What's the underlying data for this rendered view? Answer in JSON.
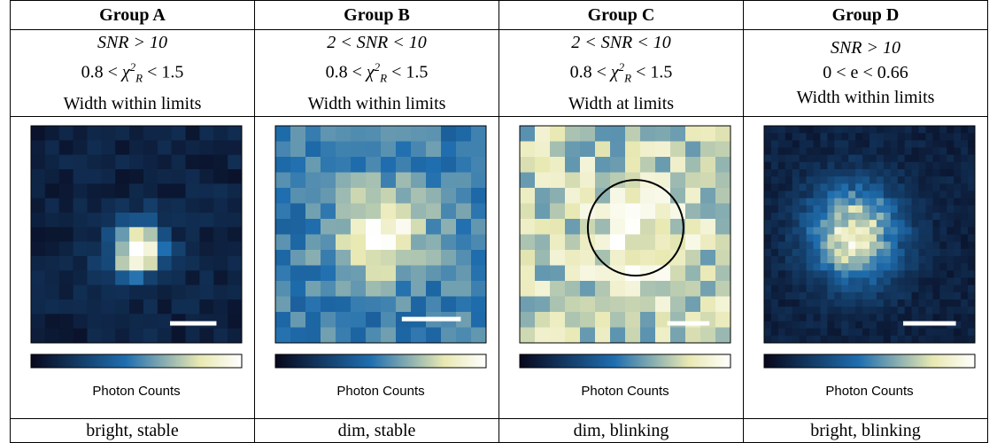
{
  "table": {
    "columns": [
      {
        "header": "Group A",
        "criteria": [
          "SNR > 10",
          {
            "before": "0.8 <",
            "symbol": "χ",
            "sup": "2",
            "sub": "R",
            "after": "< 1.5"
          },
          "Width within limits"
        ],
        "colorbar_label": "Photon Counts",
        "footer": "bright, stable"
      },
      {
        "header": "Group B",
        "criteria": [
          "2 < SNR < 10",
          {
            "before": "0.8 <",
            "symbol": "χ",
            "sup": "2",
            "sub": "R",
            "after": "< 1.5"
          },
          "Width within limits"
        ],
        "colorbar_label": "Photon Counts",
        "footer": "dim, stable"
      },
      {
        "header": "Group C",
        "criteria": [
          "2 < SNR < 10",
          {
            "before": "0.8 <",
            "symbol": "χ",
            "sup": "2",
            "sub": "R",
            "after": "< 1.5"
          },
          "Width at limits"
        ],
        "colorbar_label": "Photon Counts",
        "footer": "dim, blinking"
      },
      {
        "header": "Group D",
        "criteria": [
          "SNR > 10",
          "0 < e < 0.66",
          "Width within limits"
        ],
        "colorbar_label": "Photon Counts",
        "footer": "bright, blinking"
      }
    ]
  }
}
